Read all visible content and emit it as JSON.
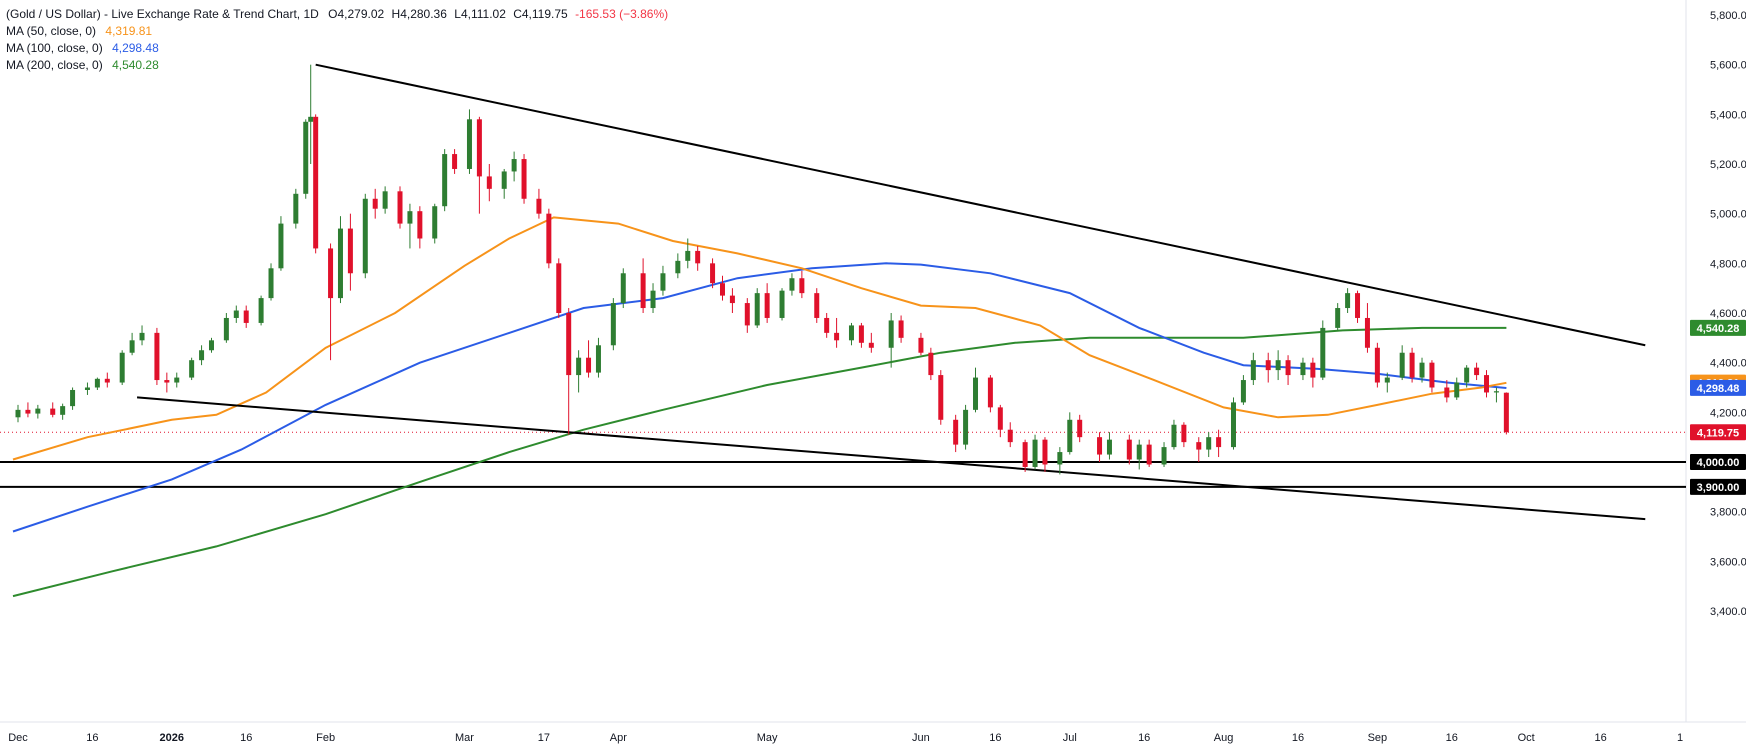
{
  "legend": {
    "title": "(Gold / US Dollar) - Live Exchange Rate & Trend Chart, 1D",
    "open": "O4,279.02",
    "high": "H4,280.36",
    "low": "L4,111.02",
    "close": "C4,119.75",
    "change": "-165.53 (−3.86%)",
    "ma50_label": "MA (50, close, 0)",
    "ma50_value": "4,319.81",
    "ma100_label": "MA (100, close, 0)",
    "ma100_value": "4,298.48",
    "ma200_label": "MA (200, close, 0)",
    "ma200_value": "4,540.28"
  },
  "colors": {
    "up": "#26a69a",
    "up_body": "#2e7d32",
    "down": "#e0112b",
    "ma50": "#f7931a",
    "ma100": "#2b5ce6",
    "ma200": "#2e8b2e",
    "trend": "#000000",
    "last_price": "#e0112b"
  },
  "chart_data": {
    "type": "candlestick",
    "instrument": "Gold / US Dollar",
    "timeframe": "1D",
    "ylim": [
      3300,
      5900
    ],
    "y_ticks": [
      "5,800.00",
      "5,600.00",
      "5,400.00",
      "5,200.00",
      "5,000.00",
      "4,800.00",
      "4,600.00",
      "4,400.00",
      "4,200.00",
      "4,000.00",
      "3,800.00",
      "3,600.00",
      "3,400.00"
    ],
    "x_ticks": [
      {
        "label": "Dec",
        "date": "2025-12-01"
      },
      {
        "label": "16",
        "date": "2025-12-16"
      },
      {
        "label": "2026",
        "date": "2026-01-01",
        "bold": true
      },
      {
        "label": "16",
        "date": "2026-01-16"
      },
      {
        "label": "Feb",
        "date": "2026-02-01"
      },
      {
        "label": "Mar",
        "date": "2026-03-01"
      },
      {
        "label": "17",
        "date": "2026-03-17"
      },
      {
        "label": "Apr",
        "date": "2026-04-01"
      },
      {
        "label": "May",
        "date": "2026-05-01"
      },
      {
        "label": "Jun",
        "date": "2026-06-01"
      },
      {
        "label": "16",
        "date": "2026-06-16"
      },
      {
        "label": "Jul",
        "date": "2026-07-01"
      },
      {
        "label": "16",
        "date": "2026-07-16"
      },
      {
        "label": "Aug",
        "date": "2026-08-01"
      },
      {
        "label": "16",
        "date": "2026-08-16"
      },
      {
        "label": "Sep",
        "date": "2026-09-01"
      },
      {
        "label": "16",
        "date": "2026-09-16"
      },
      {
        "label": "Oct",
        "date": "2026-10-01"
      },
      {
        "label": "16",
        "date": "2026-10-16"
      },
      {
        "label": "1",
        "date": "2026-11-01"
      }
    ],
    "price_badges": [
      {
        "label": "4,540.28",
        "value": 4540.28,
        "color": "#2e8b2e"
      },
      {
        "label": "4,319.81",
        "value": 4319.81,
        "color": "#f7931a"
      },
      {
        "label": "4,298.48",
        "value": 4298.48,
        "color": "#2b5ce6"
      },
      {
        "label": "4,119.75",
        "value": 4119.75,
        "color": "#e0112b"
      },
      {
        "label": "4,000.00",
        "value": 4000,
        "color": "#000000"
      },
      {
        "label": "3,900.00",
        "value": 3900,
        "color": "#000000"
      }
    ],
    "horizontal_levels": [
      4000,
      3900
    ],
    "last_price": 4119.75,
    "trendlines": [
      {
        "name": "upper",
        "from": {
          "date": "2026-01-30",
          "value": 5600
        },
        "to": {
          "date": "2026-10-25",
          "value": 4470
        }
      },
      {
        "name": "lower",
        "from": {
          "date": "2025-12-25",
          "value": 4260
        },
        "to": {
          "date": "2026-10-25",
          "value": 3770
        }
      }
    ],
    "ma50": [
      [
        "2025-11-30",
        4010
      ],
      [
        "2025-12-15",
        4100
      ],
      [
        "2026-01-01",
        4170
      ],
      [
        "2026-01-10",
        4190
      ],
      [
        "2026-01-20",
        4280
      ],
      [
        "2026-02-01",
        4460
      ],
      [
        "2026-02-15",
        4600
      ],
      [
        "2026-03-01",
        4790
      ],
      [
        "2026-03-10",
        4900
      ],
      [
        "2026-03-19",
        4985
      ],
      [
        "2026-04-01",
        4960
      ],
      [
        "2026-04-12",
        4890
      ],
      [
        "2026-04-25",
        4840
      ],
      [
        "2026-05-08",
        4780
      ],
      [
        "2026-05-20",
        4700
      ],
      [
        "2026-06-01",
        4630
      ],
      [
        "2026-06-12",
        4620
      ],
      [
        "2026-06-25",
        4550
      ],
      [
        "2026-07-05",
        4430
      ],
      [
        "2026-07-18",
        4330
      ],
      [
        "2026-08-01",
        4220
      ],
      [
        "2026-08-12",
        4180
      ],
      [
        "2026-08-22",
        4190
      ],
      [
        "2026-09-01",
        4230
      ],
      [
        "2026-09-12",
        4275
      ],
      [
        "2026-09-22",
        4300
      ],
      [
        "2026-09-27",
        4319
      ]
    ],
    "ma100": [
      [
        "2025-11-30",
        3720
      ],
      [
        "2025-12-15",
        3820
      ],
      [
        "2026-01-01",
        3930
      ],
      [
        "2026-01-15",
        4050
      ],
      [
        "2026-02-01",
        4230
      ],
      [
        "2026-02-20",
        4400
      ],
      [
        "2026-03-10",
        4520
      ],
      [
        "2026-03-25",
        4620
      ],
      [
        "2026-04-10",
        4660
      ],
      [
        "2026-04-25",
        4740
      ],
      [
        "2026-05-10",
        4780
      ],
      [
        "2026-05-25",
        4800
      ],
      [
        "2026-06-01",
        4795
      ],
      [
        "2026-06-15",
        4760
      ],
      [
        "2026-07-01",
        4680
      ],
      [
        "2026-07-15",
        4540
      ],
      [
        "2026-07-28",
        4440
      ],
      [
        "2026-08-05",
        4390
      ],
      [
        "2026-08-20",
        4375
      ],
      [
        "2026-09-01",
        4355
      ],
      [
        "2026-09-15",
        4320
      ],
      [
        "2026-09-27",
        4298
      ]
    ],
    "ma200": [
      [
        "2025-11-30",
        3460
      ],
      [
        "2025-12-20",
        3560
      ],
      [
        "2026-01-10",
        3660
      ],
      [
        "2026-02-01",
        3790
      ],
      [
        "2026-02-20",
        3920
      ],
      [
        "2026-03-10",
        4040
      ],
      [
        "2026-03-25",
        4130
      ],
      [
        "2026-04-10",
        4210
      ],
      [
        "2026-05-01",
        4310
      ],
      [
        "2026-05-20",
        4380
      ],
      [
        "2026-06-05",
        4440
      ],
      [
        "2026-06-20",
        4480
      ],
      [
        "2026-07-05",
        4500
      ],
      [
        "2026-07-20",
        4500
      ],
      [
        "2026-08-05",
        4500
      ],
      [
        "2026-08-25",
        4530
      ],
      [
        "2026-09-10",
        4540
      ],
      [
        "2026-09-27",
        4540
      ]
    ],
    "candles": [
      [
        "2025-12-01",
        4180,
        4230,
        4160,
        4210
      ],
      [
        "2025-12-03",
        4210,
        4240,
        4180,
        4195
      ],
      [
        "2025-12-05",
        4195,
        4230,
        4175,
        4215
      ],
      [
        "2025-12-08",
        4215,
        4240,
        4180,
        4190
      ],
      [
        "2025-12-10",
        4190,
        4235,
        4170,
        4225
      ],
      [
        "2025-12-12",
        4225,
        4300,
        4210,
        4290
      ],
      [
        "2025-12-15",
        4290,
        4320,
        4270,
        4300
      ],
      [
        "2025-12-17",
        4300,
        4340,
        4290,
        4335
      ],
      [
        "2025-12-19",
        4335,
        4360,
        4300,
        4320
      ],
      [
        "2025-12-22",
        4320,
        4450,
        4310,
        4440
      ],
      [
        "2025-12-24",
        4440,
        4520,
        4430,
        4490
      ],
      [
        "2025-12-26",
        4490,
        4550,
        4470,
        4520
      ],
      [
        "2025-12-29",
        4520,
        4540,
        4310,
        4330
      ],
      [
        "2025-12-31",
        4330,
        4360,
        4280,
        4320
      ],
      [
        "2026-01-02",
        4320,
        4360,
        4300,
        4340
      ],
      [
        "2026-01-05",
        4340,
        4420,
        4330,
        4410
      ],
      [
        "2026-01-07",
        4410,
        4470,
        4390,
        4450
      ],
      [
        "2026-01-09",
        4450,
        4500,
        4440,
        4490
      ],
      [
        "2026-01-12",
        4490,
        4600,
        4480,
        4580
      ],
      [
        "2026-01-14",
        4580,
        4630,
        4560,
        4610
      ],
      [
        "2026-01-16",
        4610,
        4630,
        4540,
        4560
      ],
      [
        "2026-01-19",
        4560,
        4670,
        4550,
        4660
      ],
      [
        "2026-01-21",
        4660,
        4800,
        4650,
        4780
      ],
      [
        "2026-01-23",
        4780,
        4990,
        4770,
        4960
      ],
      [
        "2026-01-26",
        4960,
        5100,
        4940,
        5080
      ],
      [
        "2026-01-28",
        5080,
        5380,
        5060,
        5370
      ],
      [
        "2026-01-29",
        5370,
        5600,
        5200,
        5390
      ],
      [
        "2026-01-30",
        5390,
        5400,
        4840,
        4860
      ],
      [
        "2026-02-02",
        4860,
        4880,
        4410,
        4660
      ],
      [
        "2026-02-04",
        4660,
        4990,
        4640,
        4940
      ],
      [
        "2026-02-06",
        4940,
        5000,
        4690,
        4760
      ],
      [
        "2026-02-09",
        4760,
        5080,
        4740,
        5060
      ],
      [
        "2026-02-11",
        5060,
        5100,
        4980,
        5020
      ],
      [
        "2026-02-13",
        5020,
        5110,
        5000,
        5090
      ],
      [
        "2026-02-16",
        5090,
        5110,
        4940,
        4960
      ],
      [
        "2026-02-18",
        4960,
        5040,
        4860,
        5010
      ],
      [
        "2026-02-20",
        5010,
        5030,
        4860,
        4900
      ],
      [
        "2026-02-23",
        4900,
        5040,
        4880,
        5030
      ],
      [
        "2026-02-25",
        5030,
        5260,
        5010,
        5240
      ],
      [
        "2026-02-27",
        5240,
        5260,
        5160,
        5180
      ],
      [
        "2026-03-02",
        5180,
        5420,
        5160,
        5380
      ],
      [
        "2026-03-04",
        5380,
        5390,
        5000,
        5150
      ],
      [
        "2026-03-06",
        5150,
        5200,
        5050,
        5100
      ],
      [
        "2026-03-09",
        5100,
        5180,
        5060,
        5170
      ],
      [
        "2026-03-11",
        5170,
        5250,
        5130,
        5220
      ],
      [
        "2026-03-13",
        5220,
        5240,
        5040,
        5060
      ],
      [
        "2026-03-16",
        5060,
        5100,
        4980,
        5000
      ],
      [
        "2026-03-18",
        5000,
        5020,
        4780,
        4800
      ],
      [
        "2026-03-20",
        4800,
        4820,
        4580,
        4600
      ],
      [
        "2026-03-22",
        4600,
        4620,
        4110,
        4350
      ],
      [
        "2026-03-24",
        4350,
        4450,
        4280,
        4420
      ],
      [
        "2026-03-26",
        4420,
        4490,
        4340,
        4360
      ],
      [
        "2026-03-28",
        4360,
        4500,
        4340,
        4470
      ],
      [
        "2026-03-31",
        4470,
        4660,
        4450,
        4640
      ],
      [
        "2026-04-02",
        4640,
        4780,
        4620,
        4760
      ],
      [
        "2026-04-06",
        4760,
        4820,
        4600,
        4620
      ],
      [
        "2026-04-08",
        4620,
        4720,
        4600,
        4690
      ],
      [
        "2026-04-10",
        4690,
        4790,
        4670,
        4760
      ],
      [
        "2026-04-13",
        4760,
        4840,
        4740,
        4810
      ],
      [
        "2026-04-15",
        4810,
        4900,
        4780,
        4850
      ],
      [
        "2026-04-17",
        4850,
        4870,
        4770,
        4800
      ],
      [
        "2026-04-20",
        4800,
        4820,
        4700,
        4720
      ],
      [
        "2026-04-22",
        4720,
        4750,
        4650,
        4670
      ],
      [
        "2026-04-24",
        4670,
        4700,
        4600,
        4640
      ],
      [
        "2026-04-27",
        4640,
        4660,
        4520,
        4550
      ],
      [
        "2026-04-29",
        4550,
        4700,
        4540,
        4680
      ],
      [
        "2026-05-01",
        4680,
        4720,
        4560,
        4580
      ],
      [
        "2026-05-04",
        4580,
        4700,
        4570,
        4690
      ],
      [
        "2026-05-06",
        4690,
        4760,
        4670,
        4740
      ],
      [
        "2026-05-08",
        4740,
        4770,
        4660,
        4680
      ],
      [
        "2026-05-11",
        4680,
        4700,
        4560,
        4580
      ],
      [
        "2026-05-13",
        4580,
        4600,
        4500,
        4520
      ],
      [
        "2026-05-15",
        4520,
        4580,
        4460,
        4490
      ],
      [
        "2026-05-18",
        4490,
        4560,
        4470,
        4550
      ],
      [
        "2026-05-20",
        4550,
        4560,
        4460,
        4480
      ],
      [
        "2026-05-22",
        4480,
        4520,
        4440,
        4460
      ],
      [
        "2026-05-26",
        4460,
        4600,
        4380,
        4570
      ],
      [
        "2026-05-28",
        4570,
        4590,
        4480,
        4500
      ],
      [
        "2026-06-01",
        4500,
        4520,
        4430,
        4440
      ],
      [
        "2026-06-03",
        4440,
        4460,
        4330,
        4350
      ],
      [
        "2026-06-05",
        4350,
        4370,
        4150,
        4170
      ],
      [
        "2026-06-08",
        4170,
        4190,
        4040,
        4070
      ],
      [
        "2026-06-10",
        4070,
        4230,
        4050,
        4210
      ],
      [
        "2026-06-12",
        4210,
        4380,
        4200,
        4340
      ],
      [
        "2026-06-15",
        4340,
        4350,
        4200,
        4220
      ],
      [
        "2026-06-17",
        4220,
        4230,
        4100,
        4130
      ],
      [
        "2026-06-19",
        4130,
        4160,
        4060,
        4080
      ],
      [
        "2026-06-22",
        4080,
        4090,
        3960,
        3980
      ],
      [
        "2026-06-24",
        3980,
        4110,
        3970,
        4090
      ],
      [
        "2026-06-26",
        4090,
        4100,
        3960,
        3990
      ],
      [
        "2026-06-29",
        3990,
        4060,
        3950,
        4040
      ],
      [
        "2026-07-01",
        4040,
        4200,
        4030,
        4170
      ],
      [
        "2026-07-03",
        4170,
        4190,
        4080,
        4100
      ],
      [
        "2026-07-07",
        4100,
        4120,
        4000,
        4030
      ],
      [
        "2026-07-09",
        4030,
        4120,
        4010,
        4090
      ],
      [
        "2026-07-13",
        4090,
        4110,
        3990,
        4010
      ],
      [
        "2026-07-15",
        4010,
        4090,
        3970,
        4070
      ],
      [
        "2026-07-17",
        4070,
        4090,
        3980,
        3990
      ],
      [
        "2026-07-20",
        3990,
        4080,
        3980,
        4060
      ],
      [
        "2026-07-22",
        4060,
        4170,
        4050,
        4150
      ],
      [
        "2026-07-24",
        4150,
        4160,
        4060,
        4080
      ],
      [
        "2026-07-27",
        4080,
        4100,
        4000,
        4050
      ],
      [
        "2026-07-29",
        4050,
        4120,
        4020,
        4100
      ],
      [
        "2026-07-31",
        4100,
        4130,
        4020,
        4060
      ],
      [
        "2026-08-03",
        4060,
        4260,
        4050,
        4240
      ],
      [
        "2026-08-05",
        4240,
        4350,
        4230,
        4330
      ],
      [
        "2026-08-07",
        4330,
        4440,
        4310,
        4410
      ],
      [
        "2026-08-10",
        4410,
        4440,
        4320,
        4370
      ],
      [
        "2026-08-12",
        4370,
        4450,
        4330,
        4410
      ],
      [
        "2026-08-14",
        4410,
        4430,
        4310,
        4350
      ],
      [
        "2026-08-17",
        4350,
        4420,
        4330,
        4400
      ],
      [
        "2026-08-19",
        4400,
        4420,
        4300,
        4340
      ],
      [
        "2026-08-21",
        4340,
        4570,
        4330,
        4540
      ],
      [
        "2026-08-24",
        4540,
        4640,
        4530,
        4620
      ],
      [
        "2026-08-26",
        4620,
        4700,
        4600,
        4680
      ],
      [
        "2026-08-28",
        4680,
        4690,
        4560,
        4580
      ],
      [
        "2026-08-30",
        4580,
        4640,
        4440,
        4460
      ],
      [
        "2026-09-01",
        4460,
        4480,
        4300,
        4320
      ],
      [
        "2026-09-03",
        4320,
        4360,
        4280,
        4340
      ],
      [
        "2026-09-06",
        4340,
        4470,
        4330,
        4440
      ],
      [
        "2026-09-08",
        4440,
        4460,
        4320,
        4340
      ],
      [
        "2026-09-10",
        4340,
        4420,
        4320,
        4400
      ],
      [
        "2026-09-12",
        4400,
        4410,
        4280,
        4300
      ],
      [
        "2026-09-15",
        4300,
        4330,
        4240,
        4260
      ],
      [
        "2026-09-17",
        4260,
        4340,
        4250,
        4320
      ],
      [
        "2026-09-19",
        4320,
        4390,
        4300,
        4380
      ],
      [
        "2026-09-21",
        4380,
        4400,
        4330,
        4350
      ],
      [
        "2026-09-23",
        4350,
        4370,
        4260,
        4280
      ],
      [
        "2026-09-25",
        4280,
        4300,
        4240,
        4285
      ],
      [
        "2026-09-27",
        4279.02,
        4280.36,
        4111.02,
        4119.75
      ]
    ]
  }
}
